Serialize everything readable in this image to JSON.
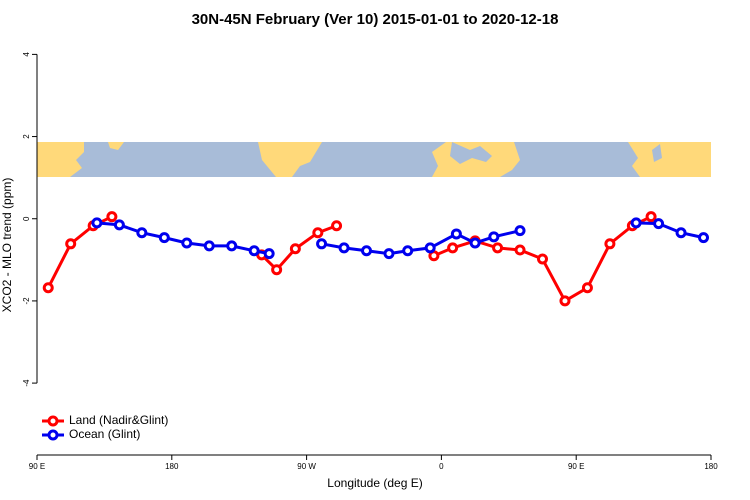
{
  "chart_data": {
    "type": "line",
    "title": "30N-45N February (Ver 10)   2015-01-01 to 2020-12-18",
    "x_label": "Longitude (deg E)",
    "y_label": "XCO2 - MLO trend (ppm)",
    "xlim": [
      90,
      540
    ],
    "ylim": [
      -5.75,
      4.35
    ],
    "xticks": [
      {
        "value": 90,
        "label": "90 E"
      },
      180,
      {
        "value": 270,
        "label": "90 W"
      },
      {
        "value": 360,
        "label": "0"
      },
      {
        "value": 450,
        "label": "90 E"
      },
      {
        "value": 540,
        "label": "180"
      }
    ],
    "yticks": [
      -4,
      -2,
      0,
      2,
      4
    ],
    "legend": "bottomleft",
    "series": [
      {
        "name": "Land (Nadir&Glint)",
        "color": "#ff0000",
        "x": [
          97.5,
          112.5,
          127.5,
          140,
          190,
          240,
          250,
          262.5,
          277.5,
          290,
          320,
          355,
          367.5,
          382.5,
          397.5,
          412.5,
          427.5,
          442.5,
          457.5,
          472.5,
          487.5,
          500
        ],
        "values": [
          -1.68,
          -0.61,
          -0.17,
          0.05,
          null,
          -0.88,
          -1.24,
          -0.73,
          -0.34,
          -0.17,
          null,
          -0.9,
          -0.71,
          -0.54,
          -0.71,
          -0.76,
          -0.98,
          -2.0,
          -1.68,
          -0.61,
          -0.17,
          0.05
        ]
      },
      {
        "name": "Ocean (Glint)",
        "color": "#0000ee",
        "x": [
          130,
          145,
          160,
          175,
          190,
          205,
          220,
          235,
          245,
          260,
          280,
          295,
          310,
          325,
          337.5,
          352.5,
          370,
          382.5,
          395,
          412.5,
          450,
          490,
          505,
          520,
          535
        ],
        "values": [
          -0.1,
          -0.15,
          -0.34,
          -0.46,
          -0.59,
          -0.66,
          -0.66,
          -0.78,
          -0.85,
          null,
          -0.61,
          -0.71,
          -0.78,
          -0.85,
          -0.78,
          -0.71,
          -0.37,
          -0.59,
          -0.44,
          -0.29,
          null,
          -0.1,
          -0.12,
          -0.34,
          -0.46
        ]
      }
    ]
  }
}
